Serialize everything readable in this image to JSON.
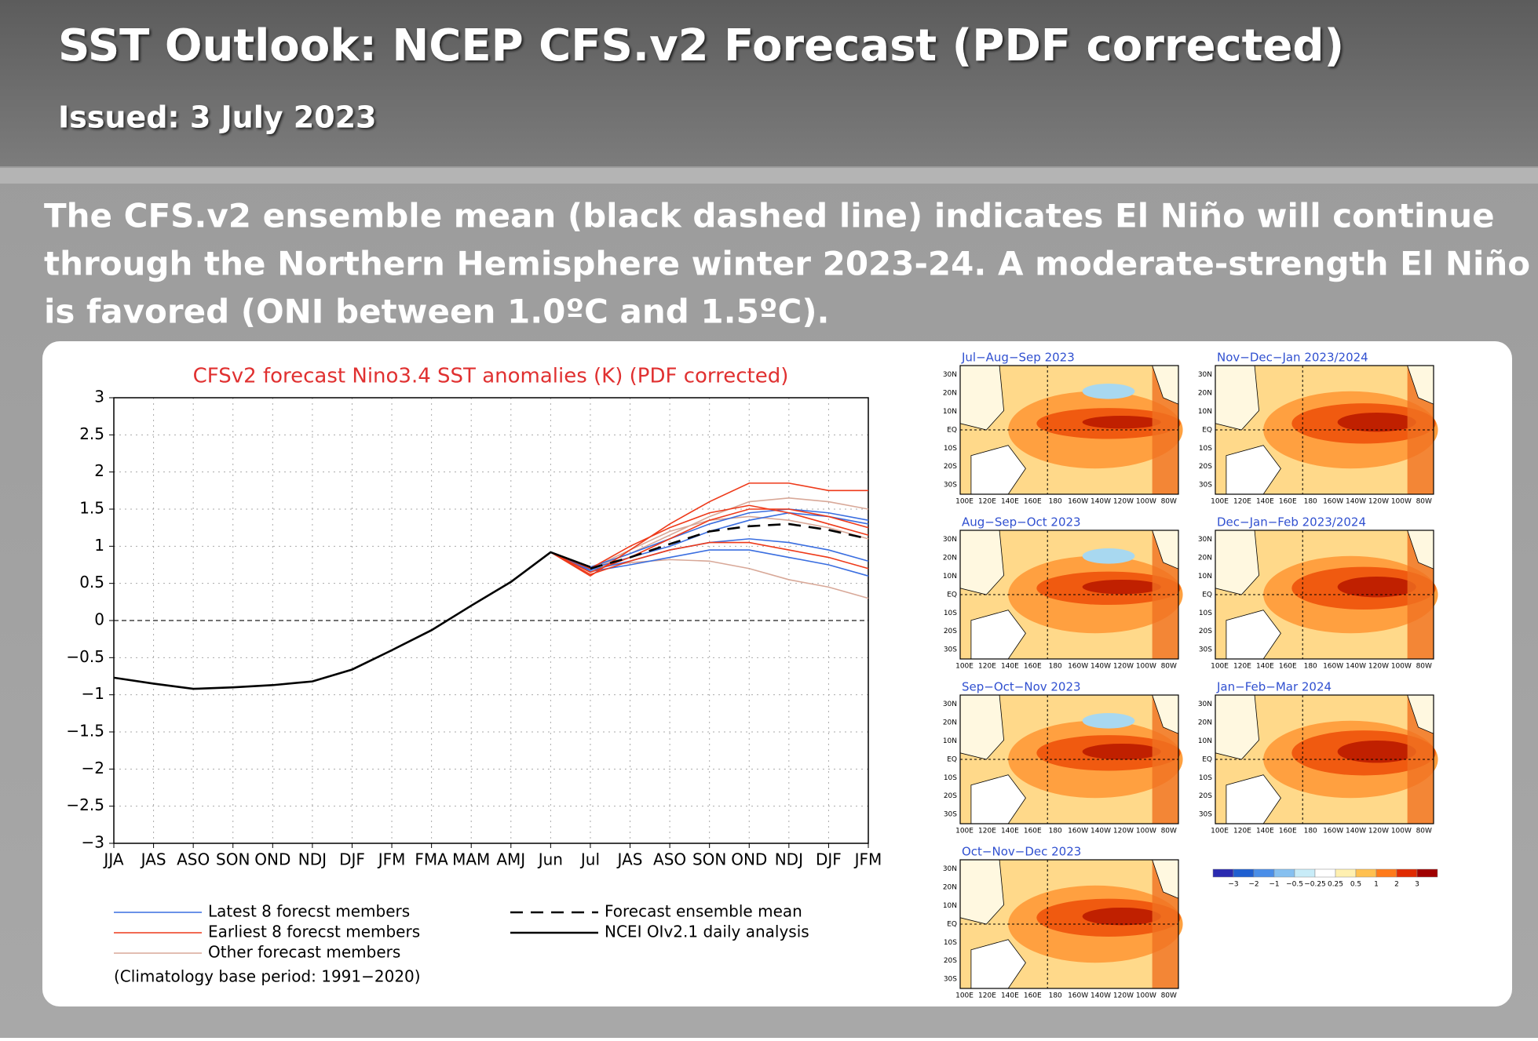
{
  "header": {
    "title": "SST Outlook: NCEP CFS.v2 Forecast (PDF corrected)",
    "subtitle": "Issued: 3 July 2023"
  },
  "summary": [
    "The CFS.v2 ensemble mean (black dashed line) indicates El Niño will continue",
    "through the Northern Hemisphere winter 2023-24.  A moderate-strength El Niño",
    "is favored (ONI between 1.0ºC and 1.5ºC)."
  ],
  "chart_data": {
    "type": "line",
    "title": "CFSv2 forecast Nino3.4 SST anomalies (K) (PDF corrected)",
    "categories": [
      "JJA",
      "JAS",
      "ASO",
      "SON",
      "OND",
      "NDJ",
      "DJF",
      "JFM",
      "FMA",
      "MAM",
      "AMJ",
      "Jun",
      "Jul",
      "JAS",
      "ASO",
      "SON",
      "OND",
      "NDJ",
      "DJF",
      "JFM"
    ],
    "ylim": [
      -3,
      3
    ],
    "yticks": [
      {
        "value": -3,
        "label": "−3"
      },
      {
        "value": -2.5,
        "label": "−2.5"
      },
      {
        "value": -2,
        "label": "−2"
      },
      {
        "value": -1.5,
        "label": "−1.5"
      },
      {
        "value": -1,
        "label": "−1"
      },
      {
        "value": -0.5,
        "label": "−0.5"
      },
      0,
      0.5,
      1,
      1.5,
      2,
      2.5,
      3
    ],
    "grid": true,
    "series": [
      {
        "name": "Latest 8 forecst members",
        "color": "#3a6ee0",
        "members": [
          [
            null,
            null,
            null,
            null,
            null,
            null,
            null,
            null,
            null,
            null,
            null,
            0.92,
            0.7,
            0.85,
            1.0,
            1.2,
            1.35,
            1.45,
            1.4,
            1.3
          ],
          [
            null,
            null,
            null,
            null,
            null,
            null,
            null,
            null,
            null,
            null,
            null,
            0.92,
            0.68,
            0.8,
            0.95,
            1.05,
            1.1,
            1.05,
            0.95,
            0.8
          ],
          [
            null,
            null,
            null,
            null,
            null,
            null,
            null,
            null,
            null,
            null,
            null,
            0.92,
            0.72,
            0.9,
            1.1,
            1.3,
            1.45,
            1.5,
            1.45,
            1.35
          ],
          [
            null,
            null,
            null,
            null,
            null,
            null,
            null,
            null,
            null,
            null,
            null,
            0.92,
            0.66,
            0.75,
            0.85,
            0.95,
            0.95,
            0.85,
            0.75,
            0.6
          ]
        ]
      },
      {
        "name": "Earliest 8 forecst members",
        "color": "#ee3a1a",
        "members": [
          [
            null,
            null,
            null,
            null,
            null,
            null,
            null,
            null,
            null,
            null,
            null,
            0.92,
            0.6,
            0.95,
            1.3,
            1.6,
            1.85,
            1.85,
            1.75,
            1.75
          ],
          [
            null,
            null,
            null,
            null,
            null,
            null,
            null,
            null,
            null,
            null,
            null,
            0.92,
            0.65,
            0.85,
            1.1,
            1.35,
            1.5,
            1.5,
            1.4,
            1.25
          ],
          [
            null,
            null,
            null,
            null,
            null,
            null,
            null,
            null,
            null,
            null,
            null,
            0.92,
            0.62,
            0.8,
            0.95,
            1.05,
            1.05,
            0.95,
            0.85,
            0.7
          ],
          [
            null,
            null,
            null,
            null,
            null,
            null,
            null,
            null,
            null,
            null,
            null,
            0.92,
            0.7,
            1.0,
            1.25,
            1.45,
            1.55,
            1.45,
            1.3,
            1.15
          ]
        ]
      },
      {
        "name": "Other forecast members",
        "color": "#d8a898",
        "members": [
          [
            null,
            null,
            null,
            null,
            null,
            null,
            null,
            null,
            null,
            null,
            null,
            0.92,
            0.7,
            0.9,
            1.15,
            1.4,
            1.6,
            1.65,
            1.6,
            1.5
          ],
          [
            null,
            null,
            null,
            null,
            null,
            null,
            null,
            null,
            null,
            null,
            null,
            0.92,
            0.72,
            0.78,
            0.82,
            0.8,
            0.7,
            0.55,
            0.45,
            0.3
          ],
          [
            null,
            null,
            null,
            null,
            null,
            null,
            null,
            null,
            null,
            null,
            null,
            0.92,
            0.7,
            0.95,
            1.2,
            1.35,
            1.4,
            1.35,
            1.25,
            1.1
          ]
        ]
      },
      {
        "name": "Forecast ensemble mean",
        "color": "#000000",
        "dashed": true,
        "values": [
          null,
          null,
          null,
          null,
          null,
          null,
          null,
          null,
          null,
          null,
          null,
          null,
          0.7,
          0.85,
          1.03,
          1.2,
          1.27,
          1.3,
          1.22,
          1.1
        ]
      },
      {
        "name": "NCEI OIv2.1 daily analysis",
        "color": "#000000",
        "values": [
          -0.77,
          -0.85,
          -0.92,
          -0.9,
          -0.87,
          -0.82,
          -0.66,
          -0.4,
          -0.13,
          0.2,
          0.52,
          0.92,
          0.72,
          null,
          null,
          null,
          null,
          null,
          null,
          null
        ]
      }
    ],
    "note": "(Climatology base period: 1991−2020)"
  },
  "maps": [
    {
      "title": "Jul−Aug−Sep 2023"
    },
    {
      "title": "Aug−Sep−Oct 2023"
    },
    {
      "title": "Sep−Oct−Nov 2023"
    },
    {
      "title": "Oct−Nov−Dec 2023"
    },
    {
      "title": "Nov−Dec−Jan 2023/2024"
    },
    {
      "title": "Dec−Jan−Feb 2023/2024"
    },
    {
      "title": "Jan−Feb−Mar 2024"
    }
  ],
  "map_lat_labels": [
    "30N",
    "20N",
    "10N",
    "EQ",
    "10S",
    "20S",
    "30S"
  ],
  "map_lon_labels": [
    "100E",
    "120E",
    "140E",
    "160E",
    "180",
    "160W",
    "140W",
    "120W",
    "100W",
    "80W"
  ],
  "colorbar": {
    "labels": [
      "−3",
      "−2",
      "−1",
      "−0.5",
      "−0.25",
      "0.25",
      "0.5",
      "1",
      "2",
      "3"
    ],
    "colors": [
      "#2a2ab0",
      "#1f5fd0",
      "#4a8ee8",
      "#86c0f0",
      "#c8ecf8",
      "#ffffff",
      "#fff0b0",
      "#ffc050",
      "#ff7a1a",
      "#e02a00",
      "#a00000"
    ]
  }
}
